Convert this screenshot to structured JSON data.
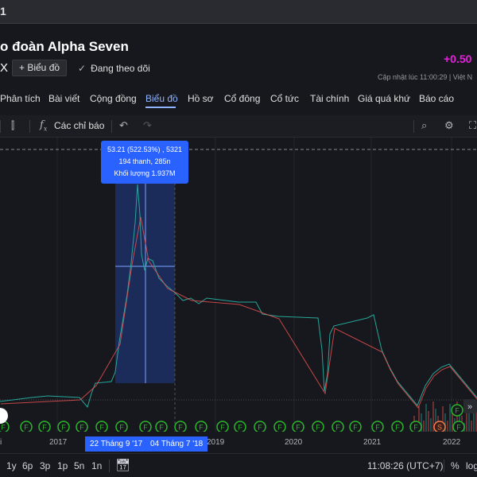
{
  "window": {
    "title_fragment": "1"
  },
  "header": {
    "company": "o đoàn Alpha Seven",
    "ticker_fragment": "X",
    "add_chart": "+ Biểu đồ",
    "following": "Đang theo dõi",
    "change": "+0.50",
    "updated": "Cập nhật lúc  11:00:29 | Việt N"
  },
  "tabs": [
    {
      "label": "Phân tích"
    },
    {
      "label": "Bài viết"
    },
    {
      "label": "Cộng đồng"
    },
    {
      "label": "Biểu đồ",
      "active": true
    },
    {
      "label": "Hồ sơ"
    },
    {
      "label": "Cổ đông"
    },
    {
      "label": "Cổ tức"
    },
    {
      "label": "Tài chính"
    },
    {
      "label": "Giá quá khứ"
    },
    {
      "label": "Báo cáo"
    }
  ],
  "toolbar": {
    "indicators": "Các chỉ báo",
    "icons": [
      "candlestick-icon",
      "fx-icon",
      "undo-icon",
      "redo-icon",
      "quick-search-icon",
      "gear-icon",
      "fullscreen-icon"
    ]
  },
  "chart": {
    "tooltip": {
      "line1": "53.21 (522.53%) , 5321",
      "line2": "194 thanh, 285n",
      "line3": "Khối lượng 1.937M"
    },
    "range_start": "22 Tháng 9 '17",
    "range_end": "04 Tháng 7 '18",
    "time_labels": [
      "i",
      "2017",
      "2019",
      "2020",
      "2021",
      "2022"
    ],
    "event_marker_letter": "F",
    "split_marker_letter": "S",
    "colors": {
      "up": "#26a69a",
      "down": "#ef5350",
      "selection": "#2962ff",
      "event": "#2bb52b"
    }
  },
  "bottom": {
    "ranges": [
      "1y",
      "6p",
      "3p",
      "1p",
      "5n",
      "1n"
    ],
    "time": "11:08:26 (UTC+7)",
    "percent": "%",
    "log": "log"
  }
}
